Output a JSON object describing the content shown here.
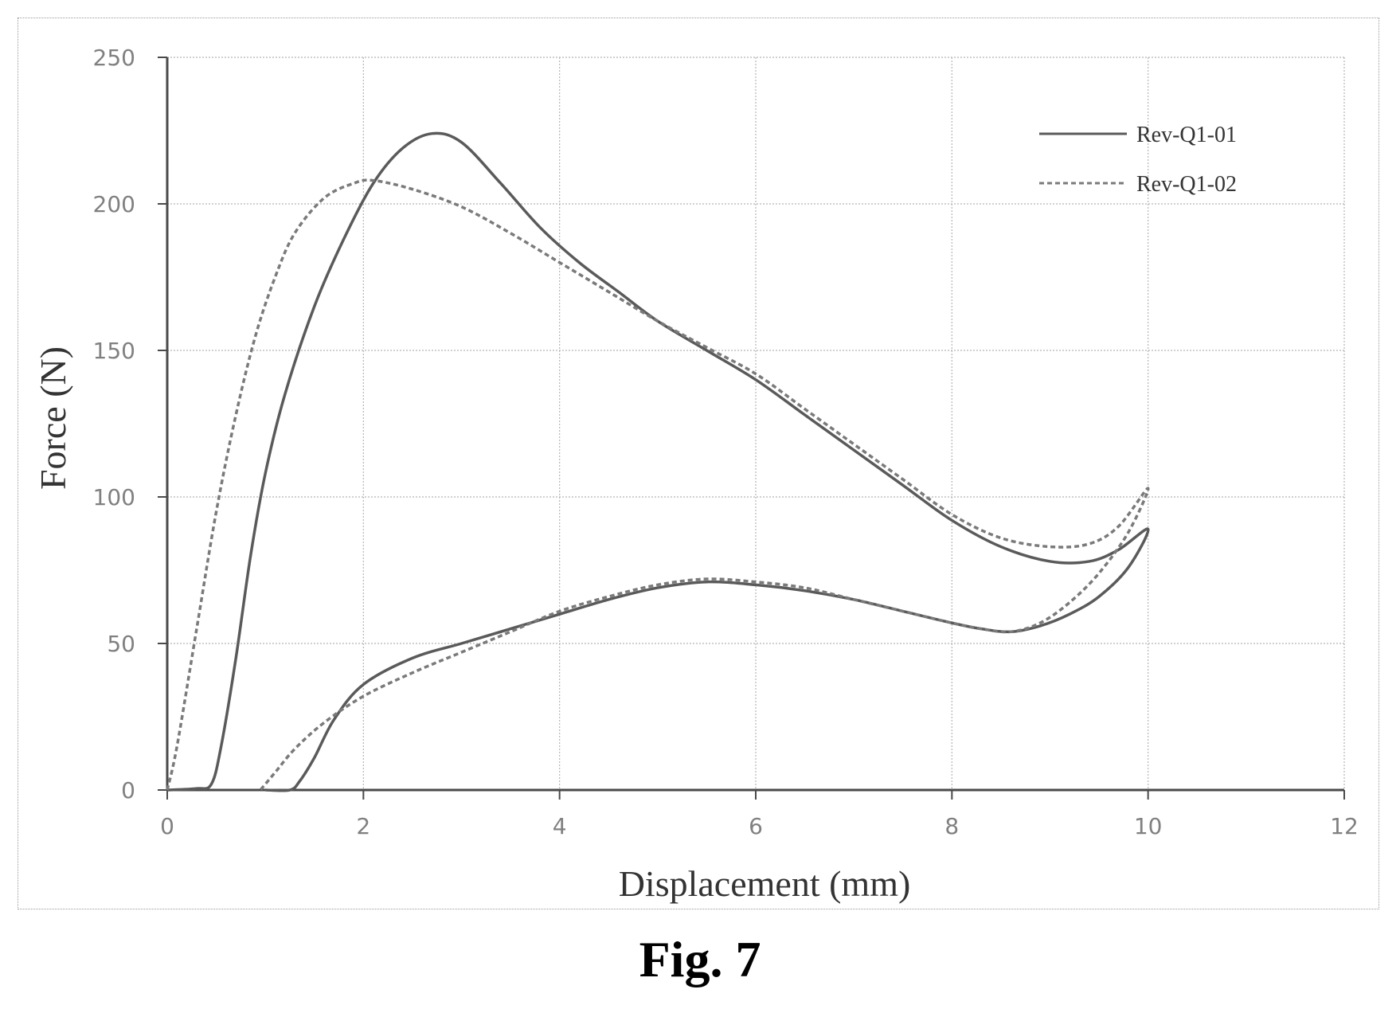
{
  "figure": {
    "caption": "Fig. 7"
  },
  "chart_data": {
    "type": "line",
    "xlabel": "Displacement  (mm)",
    "ylabel": "Force (N)",
    "xlim": [
      0,
      12
    ],
    "ylim": [
      0,
      250
    ],
    "xticks": [
      0,
      2,
      4,
      6,
      8,
      10,
      12
    ],
    "yticks": [
      0,
      50,
      100,
      150,
      200,
      250
    ],
    "grid": true,
    "legend_position": "top-right",
    "series": [
      {
        "name": "Rev-Q1-01",
        "style": "solid",
        "color": "#5a5a5a",
        "points": [
          [
            0,
            0
          ],
          [
            0.3,
            0.5
          ],
          [
            0.45,
            2
          ],
          [
            0.55,
            15
          ],
          [
            0.7,
            45
          ],
          [
            0.85,
            80
          ],
          [
            1.0,
            108
          ],
          [
            1.2,
            135
          ],
          [
            1.5,
            165
          ],
          [
            1.8,
            188
          ],
          [
            2.1,
            207
          ],
          [
            2.4,
            219
          ],
          [
            2.7,
            224
          ],
          [
            3.0,
            221
          ],
          [
            3.4,
            207
          ],
          [
            3.8,
            192
          ],
          [
            4.2,
            180
          ],
          [
            4.6,
            170
          ],
          [
            5.0,
            160
          ],
          [
            5.5,
            150
          ],
          [
            6.0,
            140
          ],
          [
            6.5,
            128
          ],
          [
            7.0,
            116
          ],
          [
            7.5,
            104
          ],
          [
            8.0,
            92
          ],
          [
            8.5,
            83
          ],
          [
            9.0,
            78
          ],
          [
            9.4,
            78
          ],
          [
            9.7,
            82
          ],
          [
            10.0,
            89
          ],
          [
            9.8,
            76
          ],
          [
            9.5,
            66
          ],
          [
            9.2,
            60
          ],
          [
            8.9,
            56
          ],
          [
            8.6,
            54
          ],
          [
            8.3,
            55
          ],
          [
            8.0,
            57
          ],
          [
            7.5,
            61
          ],
          [
            7.0,
            65
          ],
          [
            6.5,
            68
          ],
          [
            6.0,
            70
          ],
          [
            5.5,
            71
          ],
          [
            5.0,
            69
          ],
          [
            4.5,
            65
          ],
          [
            4.0,
            60
          ],
          [
            3.5,
            55
          ],
          [
            3.0,
            50
          ],
          [
            2.5,
            45
          ],
          [
            2.0,
            36
          ],
          [
            1.7,
            24
          ],
          [
            1.5,
            11
          ],
          [
            1.35,
            3
          ],
          [
            1.25,
            0
          ],
          [
            1.0,
            0
          ]
        ]
      },
      {
        "name": "Rev-Q1-02",
        "style": "dashed",
        "color": "#7a7a7a",
        "points": [
          [
            0,
            0
          ],
          [
            0.1,
            15
          ],
          [
            0.3,
            55
          ],
          [
            0.5,
            95
          ],
          [
            0.7,
            128
          ],
          [
            0.9,
            155
          ],
          [
            1.1,
            175
          ],
          [
            1.3,
            190
          ],
          [
            1.6,
            202
          ],
          [
            1.9,
            207
          ],
          [
            2.1,
            208
          ],
          [
            2.5,
            205
          ],
          [
            3.0,
            199
          ],
          [
            3.5,
            190
          ],
          [
            4.0,
            180
          ],
          [
            4.5,
            170
          ],
          [
            5.0,
            160
          ],
          [
            5.5,
            151
          ],
          [
            6.0,
            142
          ],
          [
            6.5,
            130
          ],
          [
            7.0,
            118
          ],
          [
            7.5,
            106
          ],
          [
            8.0,
            94
          ],
          [
            8.5,
            86
          ],
          [
            9.0,
            83
          ],
          [
            9.4,
            84
          ],
          [
            9.7,
            90
          ],
          [
            10.0,
            103
          ],
          [
            9.8,
            88
          ],
          [
            9.5,
            74
          ],
          [
            9.2,
            64
          ],
          [
            8.9,
            57
          ],
          [
            8.6,
            54
          ],
          [
            8.3,
            55
          ],
          [
            8.0,
            57
          ],
          [
            7.5,
            61
          ],
          [
            7.0,
            65
          ],
          [
            6.5,
            69
          ],
          [
            6.0,
            71
          ],
          [
            5.5,
            72
          ],
          [
            5.0,
            70
          ],
          [
            4.5,
            66
          ],
          [
            4.0,
            61
          ],
          [
            3.5,
            54
          ],
          [
            3.0,
            47
          ],
          [
            2.5,
            40
          ],
          [
            2.0,
            32
          ],
          [
            1.6,
            23
          ],
          [
            1.3,
            14
          ],
          [
            1.1,
            6
          ],
          [
            0.95,
            0
          ]
        ]
      }
    ]
  }
}
